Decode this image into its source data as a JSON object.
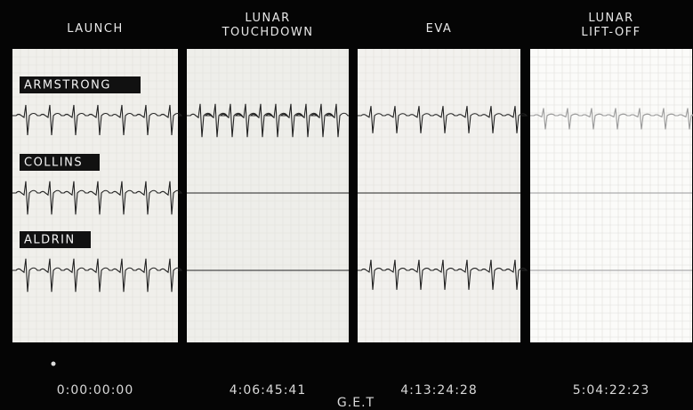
{
  "panels": [
    {
      "heading": [
        "LAUNCH"
      ],
      "time": "0:00:00:00"
    },
    {
      "heading": [
        "LUNAR",
        "TOUCHDOWN"
      ],
      "time": "4:06:45:41"
    },
    {
      "heading": [
        "EVA"
      ],
      "time": "4:13:24:28"
    },
    {
      "heading": [
        "LUNAR",
        "LIFT-OFF"
      ],
      "time": "5:04:22:23"
    }
  ],
  "crew": [
    "ARMSTRONG",
    "COLLINS",
    "ALDRIN"
  ],
  "axis_label": "G.E.T"
}
